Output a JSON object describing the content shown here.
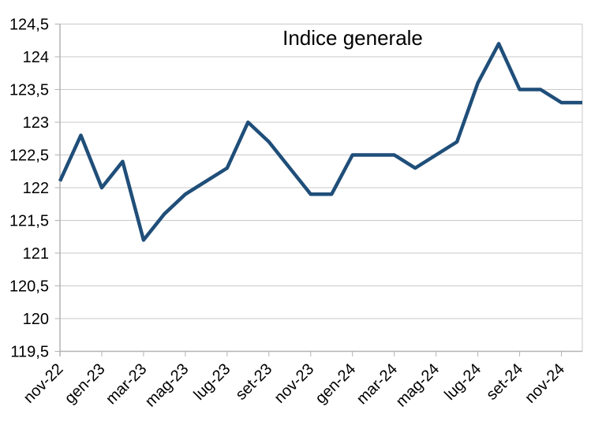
{
  "title": "Indice generale",
  "colors": {
    "line": "#1F4E79",
    "grid": "#c9c9c9",
    "axis": "#b3b3b3",
    "text": "#000000",
    "background": "#ffffff"
  },
  "chart_data": {
    "type": "line",
    "title": "Indice generale",
    "xlabel": "",
    "ylabel": "",
    "legend": "none",
    "grid": "horizontal",
    "decimal_separator": ",",
    "ylim": [
      119.5,
      124.5
    ],
    "y_step": 0.5,
    "y_tick_labels": [
      "119,5",
      "120",
      "120,5",
      "121",
      "121,5",
      "122",
      "122,5",
      "123",
      "123,5",
      "124",
      "124,5"
    ],
    "x_tick_labels": [
      "nov-22",
      "gen-23",
      "mar-23",
      "mag-23",
      "lug-23",
      "set-23",
      "nov-23",
      "gen-24",
      "mar-24",
      "mag-24",
      "lug-24",
      "set-24",
      "nov-24"
    ],
    "categories": [
      "nov-22",
      "dic-22",
      "gen-23",
      "feb-23",
      "mar-23",
      "apr-23",
      "mag-23",
      "giu-23",
      "lug-23",
      "ago-23",
      "set-23",
      "ott-23",
      "nov-23",
      "dic-23",
      "gen-24",
      "feb-24",
      "mar-24",
      "apr-24",
      "mag-24",
      "giu-24",
      "lug-24",
      "ago-24",
      "set-24",
      "ott-24",
      "nov-24",
      "dic-24"
    ],
    "series": [
      {
        "name": "Indice generale",
        "values": [
          122.1,
          122.8,
          122.0,
          122.4,
          121.2,
          121.6,
          121.9,
          122.1,
          122.3,
          123.0,
          122.7,
          122.3,
          121.9,
          121.9,
          122.5,
          122.5,
          122.5,
          122.3,
          122.5,
          122.7,
          123.6,
          124.2,
          123.5,
          123.5,
          123.3,
          123.3
        ]
      }
    ]
  }
}
